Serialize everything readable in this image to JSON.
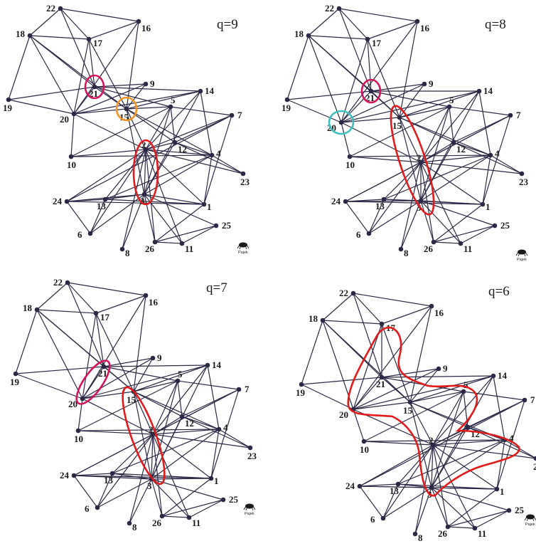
{
  "panels": [
    {
      "q_label": "q=9",
      "highlights": [
        {
          "members": [
            "21"
          ],
          "color": "#d4145a"
        },
        {
          "members": [
            "15"
          ],
          "color": "#f7931e"
        },
        {
          "members": [
            "2",
            "3"
          ],
          "color": "#e21a1a"
        }
      ]
    },
    {
      "q_label": "q=8",
      "highlights": [
        {
          "members": [
            "21"
          ],
          "color": "#d4145a"
        },
        {
          "members": [
            "20"
          ],
          "color": "#3fbfbf"
        },
        {
          "members": [
            "15",
            "2",
            "3"
          ],
          "color": "#e21a1a"
        }
      ]
    },
    {
      "q_label": "q=7",
      "highlights": [
        {
          "members": [
            "21",
            "20"
          ],
          "color": "#d4145a"
        },
        {
          "members": [
            "15",
            "2",
            "3"
          ],
          "color": "#e21a1a"
        }
      ]
    },
    {
      "q_label": "q=6",
      "highlights": [
        {
          "members": [
            "17",
            "21",
            "20",
            "15",
            "2",
            "3",
            "5",
            "12",
            "4"
          ],
          "color": "#e21a1a"
        }
      ]
    }
  ],
  "network": {
    "nodes": [
      "1",
      "2",
      "3",
      "4",
      "5",
      "6",
      "7",
      "8",
      "9",
      "10",
      "11",
      "12",
      "13",
      "14",
      "15",
      "16",
      "17",
      "18",
      "19",
      "20",
      "21",
      "22",
      "23",
      "24",
      "25",
      "26"
    ],
    "edges": [
      [
        "22",
        "18"
      ],
      [
        "22",
        "17"
      ],
      [
        "22",
        "21"
      ],
      [
        "22",
        "16"
      ],
      [
        "18",
        "17"
      ],
      [
        "18",
        "21"
      ],
      [
        "18",
        "20"
      ],
      [
        "18",
        "19"
      ],
      [
        "18",
        "15"
      ],
      [
        "16",
        "17"
      ],
      [
        "16",
        "20"
      ],
      [
        "16",
        "15"
      ],
      [
        "17",
        "21"
      ],
      [
        "17",
        "15"
      ],
      [
        "17",
        "20"
      ],
      [
        "19",
        "21"
      ],
      [
        "19",
        "20"
      ],
      [
        "21",
        "9"
      ],
      [
        "21",
        "20"
      ],
      [
        "21",
        "15"
      ],
      [
        "21",
        "14"
      ],
      [
        "21",
        "5"
      ],
      [
        "20",
        "9"
      ],
      [
        "20",
        "15"
      ],
      [
        "20",
        "2"
      ],
      [
        "20",
        "14"
      ],
      [
        "20",
        "10"
      ],
      [
        "15",
        "9"
      ],
      [
        "15",
        "5"
      ],
      [
        "15",
        "14"
      ],
      [
        "15",
        "2"
      ],
      [
        "15",
        "3"
      ],
      [
        "15",
        "12"
      ],
      [
        "15",
        "4"
      ],
      [
        "10",
        "2"
      ],
      [
        "10",
        "5"
      ],
      [
        "10",
        "4"
      ],
      [
        "5",
        "7"
      ],
      [
        "5",
        "2"
      ],
      [
        "5",
        "3"
      ],
      [
        "5",
        "12"
      ],
      [
        "14",
        "2"
      ],
      [
        "14",
        "3"
      ],
      [
        "14",
        "4"
      ],
      [
        "7",
        "12"
      ],
      [
        "7",
        "2"
      ],
      [
        "7",
        "1"
      ],
      [
        "7",
        "24"
      ],
      [
        "12",
        "2"
      ],
      [
        "12",
        "3"
      ],
      [
        "12",
        "4"
      ],
      [
        "12",
        "23"
      ],
      [
        "2",
        "3"
      ],
      [
        "2",
        "4"
      ],
      [
        "2",
        "24"
      ],
      [
        "2",
        "13"
      ],
      [
        "2",
        "6"
      ],
      [
        "2",
        "8"
      ],
      [
        "2",
        "26"
      ],
      [
        "2",
        "11"
      ],
      [
        "2",
        "1"
      ],
      [
        "2",
        "23"
      ],
      [
        "4",
        "1"
      ],
      [
        "4",
        "23"
      ],
      [
        "4",
        "3"
      ],
      [
        "4",
        "13"
      ],
      [
        "3",
        "24"
      ],
      [
        "3",
        "13"
      ],
      [
        "3",
        "6"
      ],
      [
        "3",
        "8"
      ],
      [
        "3",
        "26"
      ],
      [
        "3",
        "11"
      ],
      [
        "3",
        "1"
      ],
      [
        "3",
        "25"
      ],
      [
        "24",
        "13"
      ],
      [
        "24",
        "1"
      ],
      [
        "24",
        "6"
      ],
      [
        "13",
        "6"
      ],
      [
        "13",
        "1"
      ],
      [
        "1",
        "26"
      ],
      [
        "26",
        "25"
      ],
      [
        "26",
        "11"
      ],
      [
        "11",
        "25"
      ]
    ]
  },
  "logo": {
    "text": "Pajek",
    "icon": "spider-icon"
  }
}
